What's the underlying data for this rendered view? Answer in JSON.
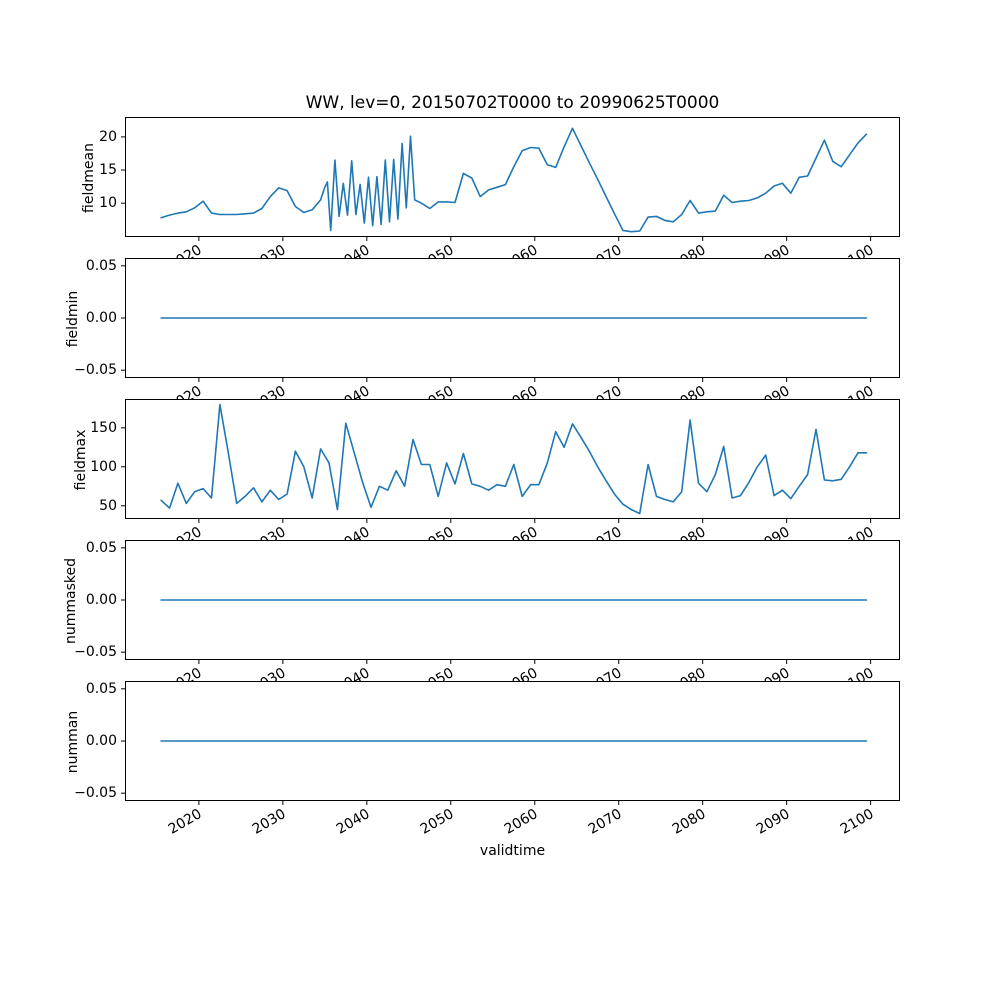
{
  "figure": {
    "title": "WW, lev=0, 20150702T0000 to 20990625T0000",
    "xlabel": "validtime",
    "line_color": "#1f77b4",
    "background": "#ffffff",
    "xlim": [
      2011.2,
      2103.5
    ],
    "xticks": [
      2020,
      2030,
      2040,
      2050,
      2060,
      2070,
      2080,
      2090,
      2100
    ],
    "xtick_labels": [
      "2020",
      "2030",
      "2040",
      "2050",
      "2060",
      "2070",
      "2080",
      "2090",
      "2100"
    ],
    "xtick_rotation_deg": 30
  },
  "chart_data": [
    {
      "type": "line",
      "ylabel": "fieldmean",
      "legend": "none",
      "grid": false,
      "ylim": [
        4.9,
        23.0
      ],
      "yticks": [
        10,
        15,
        20
      ],
      "ytick_labels": [
        "10",
        "15",
        "20"
      ],
      "x": [
        2015.5,
        2016.5,
        2017.5,
        2018.5,
        2019.5,
        2020.5,
        2021.5,
        2022.5,
        2023.5,
        2024.5,
        2025.5,
        2026.5,
        2027.5,
        2028.5,
        2029.5,
        2030.5,
        2031.5,
        2032.5,
        2033.5,
        2034.5,
        2035.0,
        2035.3,
        2035.7,
        2036.2,
        2036.7,
        2037.2,
        2037.7,
        2038.2,
        2038.7,
        2039.2,
        2039.7,
        2040.2,
        2040.7,
        2041.2,
        2041.7,
        2042.2,
        2042.7,
        2043.2,
        2043.7,
        2044.2,
        2044.7,
        2045.2,
        2045.7,
        2046.5,
        2047.5,
        2048.5,
        2049.5,
        2050.5,
        2051.5,
        2052.5,
        2053.5,
        2054.5,
        2055.5,
        2056.5,
        2057.5,
        2058.5,
        2059.5,
        2060.5,
        2061.5,
        2062.5,
        2063.5,
        2064.5,
        2065.5,
        2066.5,
        2067.5,
        2068.5,
        2069.5,
        2070.5,
        2071.5,
        2072.5,
        2073.5,
        2074.5,
        2075.5,
        2076.5,
        2077.5,
        2078.5,
        2079.5,
        2080.5,
        2081.5,
        2082.5,
        2083.5,
        2084.5,
        2085.5,
        2086.5,
        2087.5,
        2088.5,
        2089.5,
        2090.5,
        2091.5,
        2092.5,
        2093.5,
        2094.5,
        2095.5,
        2096.5,
        2097.5,
        2098.5,
        2099.5
      ],
      "y": [
        7.8,
        8.2,
        8.5,
        8.7,
        9.3,
        10.3,
        8.5,
        8.3,
        8.3,
        8.3,
        8.4,
        8.5,
        9.2,
        11.0,
        12.3,
        11.9,
        9.5,
        8.6,
        9.0,
        10.5,
        12.4,
        13.2,
        5.9,
        16.5,
        8.0,
        13.0,
        8.2,
        16.4,
        8.3,
        12.8,
        7.0,
        13.9,
        6.6,
        14.0,
        6.8,
        16.5,
        7.2,
        16.6,
        7.6,
        19.0,
        9.3,
        20.1,
        10.5,
        10.0,
        9.2,
        10.2,
        10.2,
        10.1,
        14.5,
        13.8,
        11.0,
        12.0,
        12.4,
        12.8,
        15.5,
        17.9,
        18.4,
        18.3,
        15.8,
        15.4,
        18.5,
        21.3,
        18.7,
        16.1,
        13.6,
        11.0,
        8.4,
        5.9,
        5.7,
        5.8,
        7.9,
        8.0,
        7.4,
        7.2,
        8.3,
        10.4,
        8.5,
        8.7,
        8.8,
        11.2,
        10.1,
        10.3,
        10.4,
        10.8,
        11.5,
        12.6,
        13.0,
        11.5,
        13.9,
        14.1,
        16.8,
        19.5,
        16.3,
        15.5,
        17.3,
        19.1,
        20.4
      ]
    },
    {
      "type": "line",
      "ylabel": "fieldmin",
      "constant_value": 0,
      "ylim": [
        -0.0575,
        0.0575
      ],
      "yticks": [
        -0.05,
        0.0,
        0.05
      ],
      "ytick_labels": [
        "−0.05",
        "0.00",
        "0.05"
      ],
      "x": [
        2015.5,
        2099.5
      ],
      "y": [
        0,
        0
      ]
    },
    {
      "type": "line",
      "ylabel": "fieldmax",
      "ylim": [
        33,
        187
      ],
      "yticks": [
        50,
        100,
        150
      ],
      "ytick_labels": [
        "50",
        "100",
        "150"
      ],
      "x": [
        2015.5,
        2016.5,
        2017.5,
        2018.5,
        2019.5,
        2020.5,
        2021.5,
        2022.5,
        2023.5,
        2024.5,
        2025.5,
        2026.5,
        2027.5,
        2028.5,
        2029.5,
        2030.5,
        2031.5,
        2032.5,
        2033.5,
        2034.5,
        2035.5,
        2036.5,
        2037.5,
        2038.5,
        2039.5,
        2040.5,
        2041.5,
        2042.5,
        2043.5,
        2044.5,
        2045.5,
        2046.5,
        2047.5,
        2048.5,
        2049.5,
        2050.5,
        2051.5,
        2052.5,
        2053.5,
        2054.5,
        2055.5,
        2056.5,
        2057.5,
        2058.5,
        2059.5,
        2060.5,
        2061.5,
        2062.5,
        2063.5,
        2064.5,
        2065.5,
        2066.5,
        2067.5,
        2068.5,
        2069.5,
        2070.5,
        2071.5,
        2072.5,
        2073.5,
        2074.5,
        2075.5,
        2076.5,
        2077.5,
        2078.5,
        2079.5,
        2080.5,
        2081.5,
        2082.5,
        2083.5,
        2084.5,
        2085.5,
        2086.5,
        2087.5,
        2088.5,
        2089.5,
        2090.5,
        2091.5,
        2092.5,
        2093.5,
        2094.5,
        2095.5,
        2096.5,
        2097.5,
        2098.5,
        2099.5
      ],
      "y": [
        57,
        47,
        79,
        53,
        68,
        72,
        60,
        180,
        118,
        53,
        62,
        73,
        55,
        70,
        58,
        65,
        120,
        100,
        60,
        123,
        105,
        45,
        156,
        118,
        80,
        48,
        75,
        70,
        95,
        75,
        135,
        103,
        103,
        62,
        105,
        78,
        117,
        78,
        75,
        70,
        77,
        75,
        103,
        62,
        77,
        77,
        105,
        145,
        125,
        155,
        138,
        120,
        100,
        82,
        65,
        52,
        45,
        40,
        103,
        62,
        58,
        55,
        68,
        160,
        79,
        68,
        90,
        126,
        60,
        63,
        80,
        100,
        115,
        63,
        70,
        59,
        75,
        90,
        148,
        83,
        82,
        84,
        100,
        118,
        118
      ]
    },
    {
      "type": "line",
      "ylabel": "nummasked",
      "constant_value": 0,
      "ylim": [
        -0.0575,
        0.0575
      ],
      "yticks": [
        -0.05,
        0.0,
        0.05
      ],
      "ytick_labels": [
        "−0.05",
        "0.00",
        "0.05"
      ],
      "x": [
        2015.5,
        2099.5
      ],
      "y": [
        0,
        0
      ]
    },
    {
      "type": "line",
      "ylabel": "numman",
      "constant_value": 0,
      "ylim": [
        -0.0575,
        0.0575
      ],
      "yticks": [
        -0.05,
        0.0,
        0.05
      ],
      "ytick_labels": [
        "−0.05",
        "0.00",
        "0.05"
      ],
      "x": [
        2015.5,
        2099.5
      ],
      "y": [
        0,
        0
      ]
    }
  ]
}
